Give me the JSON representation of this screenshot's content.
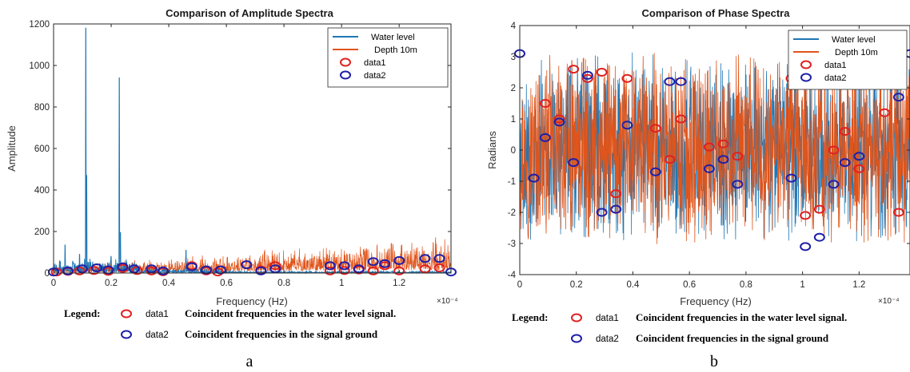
{
  "chart_data": [
    {
      "type": "line",
      "title": "Comparison of Amplitude Spectra",
      "xlabel": "Frequency (Hz)",
      "ylabel": "Amplitude",
      "x_exponent_label": "×10⁻⁴",
      "xlim": [
        0,
        1.38
      ],
      "ylim": [
        0,
        1200
      ],
      "xticks": [
        0,
        0.2,
        0.4,
        0.6,
        0.8,
        1,
        1.2
      ],
      "xtick_labels": [
        "0",
        "0.2",
        "0.4",
        "0.6",
        "0.8",
        "1",
        "1.2"
      ],
      "yticks": [
        0,
        200,
        400,
        600,
        800,
        1000,
        1200
      ],
      "ytick_labels": [
        "0",
        "200",
        "400",
        "600",
        "800",
        "1000",
        "1200"
      ],
      "legend_position": "top-right",
      "colors": {
        "water": "#1f77b4",
        "depth": "#e0551b",
        "data1": "#e02020",
        "data2": "#1f1fa8"
      },
      "series": [
        {
          "name": "Water level",
          "kind": "line",
          "noise_base": 25,
          "noise_trend": 0,
          "peaks": [
            {
              "x": 0.112,
              "y": 1180
            },
            {
              "x": 0.115,
              "y": 470
            },
            {
              "x": 0.228,
              "y": 940
            },
            {
              "x": 0.232,
              "y": 195
            },
            {
              "x": 0.04,
              "y": 135
            },
            {
              "x": 0.09,
              "y": 90
            },
            {
              "x": 0.2,
              "y": 80
            },
            {
              "x": 0.46,
              "y": 110
            }
          ]
        },
        {
          "name": "Depth 10m",
          "kind": "line",
          "noise_base": 20,
          "noise_trend": 85
        },
        {
          "name": "data1",
          "kind": "marker",
          "points": [
            [
              0.01,
              5
            ],
            [
              0.05,
              8
            ],
            [
              0.09,
              10
            ],
            [
              0.14,
              12
            ],
            [
              0.19,
              8
            ],
            [
              0.24,
              22
            ],
            [
              0.29,
              12
            ],
            [
              0.34,
              10
            ],
            [
              0.38,
              6
            ],
            [
              0.48,
              35
            ],
            [
              0.53,
              10
            ],
            [
              0.57,
              5
            ],
            [
              0.67,
              40
            ],
            [
              0.72,
              15
            ],
            [
              0.77,
              35
            ],
            [
              0.96,
              10
            ],
            [
              1.01,
              12
            ],
            [
              1.06,
              15
            ],
            [
              1.11,
              10
            ],
            [
              1.15,
              35
            ],
            [
              1.2,
              10
            ],
            [
              1.29,
              20
            ],
            [
              1.34,
              25
            ]
          ]
        },
        {
          "name": "data2",
          "kind": "marker",
          "points": [
            [
              0.0,
              5
            ],
            [
              0.05,
              10
            ],
            [
              0.1,
              20
            ],
            [
              0.15,
              25
            ],
            [
              0.19,
              15
            ],
            [
              0.24,
              30
            ],
            [
              0.28,
              20
            ],
            [
              0.34,
              20
            ],
            [
              0.38,
              10
            ],
            [
              0.48,
              30
            ],
            [
              0.53,
              15
            ],
            [
              0.58,
              15
            ],
            [
              0.67,
              40
            ],
            [
              0.72,
              10
            ],
            [
              0.77,
              20
            ],
            [
              0.96,
              35
            ],
            [
              1.01,
              35
            ],
            [
              1.06,
              20
            ],
            [
              1.11,
              55
            ],
            [
              1.15,
              45
            ],
            [
              1.2,
              60
            ],
            [
              1.29,
              70
            ],
            [
              1.34,
              70
            ],
            [
              1.38,
              5
            ]
          ]
        }
      ]
    },
    {
      "type": "line",
      "title": "Comparison of Phase Spectra",
      "xlabel": "Frequency (Hz)",
      "ylabel": "Radians",
      "x_exponent_label": "×10⁻⁴",
      "xlim": [
        0,
        1.38
      ],
      "ylim": [
        -4,
        4
      ],
      "xticks": [
        0,
        0.2,
        0.4,
        0.6,
        0.8,
        1,
        1.2
      ],
      "xtick_labels": [
        "0",
        "0.2",
        "0.4",
        "0.6",
        "0.8",
        "1",
        "1.2"
      ],
      "yticks": [
        4,
        3,
        2,
        1,
        0,
        -1,
        -2,
        -3,
        -4
      ],
      "ytick_labels": [
        "4",
        "3",
        "2",
        "1",
        "0",
        "-1",
        "-2",
        "-3",
        "-4"
      ],
      "legend_position": "top-right",
      "colors": {
        "water": "#1f77b4",
        "depth": "#e0551b",
        "data1": "#e02020",
        "data2": "#1f1fa8"
      },
      "series": [
        {
          "name": "Water level",
          "kind": "line",
          "range": [
            -3.14,
            3.14
          ]
        },
        {
          "name": "Depth 10m",
          "kind": "line",
          "range": [
            -3.14,
            3.14
          ]
        },
        {
          "name": "data1",
          "kind": "marker",
          "points": [
            [
              0.05,
              -0.9
            ],
            [
              0.09,
              1.5
            ],
            [
              0.14,
              1.0
            ],
            [
              0.19,
              2.6
            ],
            [
              0.24,
              2.3
            ],
            [
              0.29,
              2.5
            ],
            [
              0.34,
              -1.4
            ],
            [
              0.38,
              2.3
            ],
            [
              0.48,
              0.7
            ],
            [
              0.53,
              -0.3
            ],
            [
              0.57,
              1.0
            ],
            [
              0.67,
              0.1
            ],
            [
              0.72,
              0.2
            ],
            [
              0.77,
              -0.2
            ],
            [
              0.96,
              2.3
            ],
            [
              1.01,
              -2.1
            ],
            [
              1.06,
              -1.9
            ],
            [
              1.11,
              0.0
            ],
            [
              1.15,
              0.6
            ],
            [
              1.2,
              -0.6
            ],
            [
              1.29,
              1.2
            ],
            [
              1.34,
              -2.0
            ]
          ]
        },
        {
          "name": "data2",
          "kind": "marker",
          "points": [
            [
              0.0,
              3.1
            ],
            [
              0.05,
              -0.9
            ],
            [
              0.09,
              0.4
            ],
            [
              0.14,
              0.9
            ],
            [
              0.19,
              -0.4
            ],
            [
              0.24,
              2.4
            ],
            [
              0.29,
              -2.0
            ],
            [
              0.34,
              -1.9
            ],
            [
              0.38,
              0.8
            ],
            [
              0.48,
              -0.7
            ],
            [
              0.53,
              2.2
            ],
            [
              0.57,
              2.2
            ],
            [
              0.67,
              -0.6
            ],
            [
              0.72,
              -0.3
            ],
            [
              0.77,
              -1.1
            ],
            [
              0.96,
              -0.9
            ],
            [
              1.01,
              -3.1
            ],
            [
              1.06,
              -2.8
            ],
            [
              1.11,
              -1.1
            ],
            [
              1.15,
              -0.4
            ],
            [
              1.2,
              -0.2
            ],
            [
              1.34,
              1.7
            ],
            [
              1.38,
              3.1
            ]
          ]
        }
      ]
    }
  ],
  "notes": [
    {
      "heading": "Legend:",
      "entries": [
        {
          "label": "data1",
          "text": "Coincident frequencies in the water level signal."
        },
        {
          "label": "data2",
          "text": "Coincident frequencies in the signal ground"
        }
      ]
    },
    {
      "heading": "Legend:",
      "entries": [
        {
          "label": "data1",
          "text": "Coincident frequencies in the water level signal."
        },
        {
          "label": "data2",
          "text": "Coincident frequencies in the signal ground"
        }
      ]
    }
  ],
  "panel_labels": [
    "a",
    "b"
  ]
}
